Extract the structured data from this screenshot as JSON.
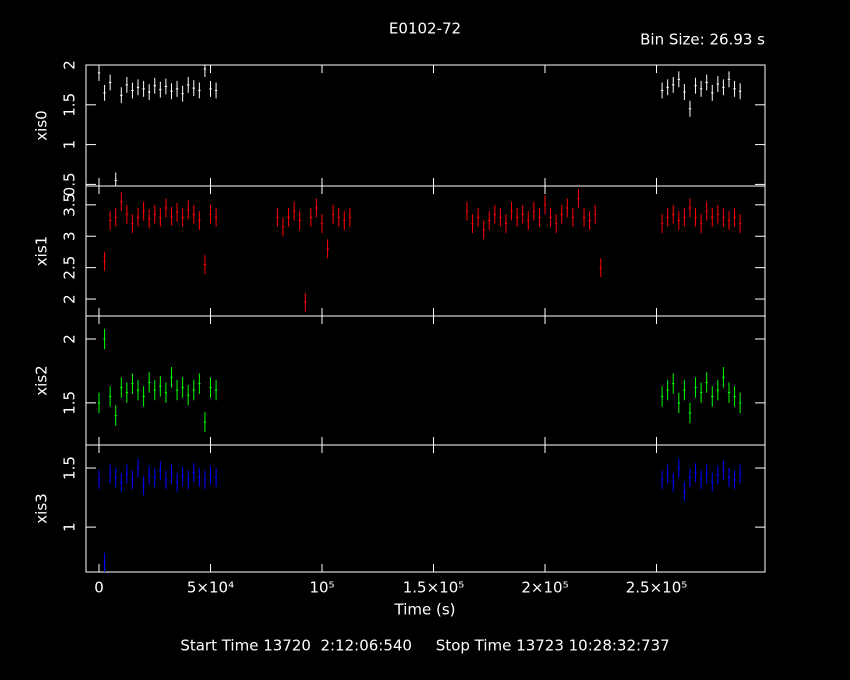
{
  "chart_data": [
    {
      "type": "errorbar",
      "title": "E0102-72",
      "subtitle": "Bin Size: 26.93 s",
      "footnote": "Start Time 13720  2:12:06:540     Stop Time 13723 10:28:32:737",
      "y_label": "xis0",
      "ylim": [
        0.48,
        2.0
      ],
      "yticks": [
        0.5,
        1,
        1.5,
        2
      ],
      "series": [
        {
          "color": "#ffffff",
          "error": 0.1,
          "x": [
            0,
            2500,
            5000,
            7500,
            10000,
            12500,
            15000,
            17500,
            20000,
            22500,
            25000,
            27500,
            30000,
            32500,
            35000,
            37500,
            40000,
            42500,
            45000,
            47500,
            50000,
            52500,
            252500,
            255000,
            257500,
            260000,
            262500,
            265000,
            267500,
            270000,
            272500,
            275000,
            277500,
            280000,
            282500,
            285000,
            287500
          ],
          "values": [
            1.9,
            1.65,
            1.78,
            0.55,
            1.62,
            1.75,
            1.68,
            1.72,
            1.7,
            1.66,
            1.74,
            1.69,
            1.73,
            1.67,
            1.7,
            1.64,
            1.75,
            1.71,
            1.68,
            1.95,
            1.7,
            1.68,
            1.68,
            1.72,
            1.75,
            1.82,
            1.66,
            1.45,
            1.74,
            1.7,
            1.78,
            1.65,
            1.76,
            1.72,
            1.82,
            1.7,
            1.67
          ]
        }
      ]
    },
    {
      "type": "errorbar",
      "y_label": "xis1",
      "ylim": [
        1.73,
        3.8
      ],
      "yticks": [
        2,
        2.5,
        3,
        3.5
      ],
      "series": [
        {
          "color": "#ff0000",
          "error": 0.15,
          "x": [
            2500,
            5000,
            7500,
            10000,
            12500,
            15000,
            17500,
            20000,
            22500,
            25000,
            27500,
            30000,
            32500,
            35000,
            37500,
            40000,
            42500,
            45000,
            47500,
            50000,
            52500,
            80000,
            82500,
            85000,
            87500,
            90000,
            92500,
            95000,
            97500,
            100000,
            102500,
            105000,
            107500,
            110000,
            112500,
            165000,
            167500,
            170000,
            172500,
            175000,
            177500,
            180000,
            182500,
            185000,
            187500,
            190000,
            192500,
            195000,
            197500,
            200000,
            202500,
            205000,
            207500,
            210000,
            212500,
            215000,
            217500,
            220000,
            222500,
            225000,
            252500,
            255000,
            257500,
            260000,
            262500,
            265000,
            267500,
            270000,
            272500,
            275000,
            277500,
            280000,
            282500,
            285000,
            287500
          ],
          "values": [
            2.6,
            3.25,
            3.3,
            3.55,
            3.35,
            3.2,
            3.3,
            3.4,
            3.28,
            3.35,
            3.3,
            3.45,
            3.32,
            3.38,
            3.3,
            3.42,
            3.35,
            3.25,
            2.55,
            3.35,
            3.3,
            3.3,
            3.15,
            3.3,
            3.4,
            3.25,
            1.95,
            3.3,
            3.45,
            3.2,
            2.8,
            3.35,
            3.3,
            3.25,
            3.3,
            3.4,
            3.2,
            3.3,
            3.1,
            3.25,
            3.35,
            3.3,
            3.2,
            3.4,
            3.3,
            3.35,
            3.25,
            3.4,
            3.3,
            3.5,
            3.3,
            3.2,
            3.35,
            3.45,
            3.3,
            3.6,
            3.3,
            3.25,
            3.35,
            2.5,
            3.2,
            3.3,
            3.35,
            3.25,
            3.3,
            3.45,
            3.3,
            3.2,
            3.4,
            3.3,
            3.35,
            3.3,
            3.25,
            3.3,
            3.2
          ]
        }
      ]
    },
    {
      "type": "errorbar",
      "y_label": "xis2",
      "ylim": [
        1.17,
        2.18
      ],
      "yticks": [
        1.5,
        2
      ],
      "series": [
        {
          "color": "#00ff00",
          "error": 0.08,
          "x": [
            0,
            2500,
            5000,
            7500,
            10000,
            12500,
            15000,
            17500,
            20000,
            22500,
            25000,
            27500,
            30000,
            32500,
            35000,
            37500,
            40000,
            42500,
            45000,
            47500,
            50000,
            52500,
            252500,
            255000,
            257500,
            260000,
            262500,
            265000,
            267500,
            270000,
            272500,
            275000,
            277500,
            280000,
            282500,
            285000,
            287500
          ],
          "values": [
            1.5,
            2.0,
            1.55,
            1.4,
            1.62,
            1.58,
            1.65,
            1.6,
            1.55,
            1.66,
            1.6,
            1.63,
            1.58,
            1.7,
            1.6,
            1.62,
            1.56,
            1.6,
            1.65,
            1.35,
            1.62,
            1.6,
            1.55,
            1.6,
            1.65,
            1.5,
            1.6,
            1.42,
            1.62,
            1.58,
            1.66,
            1.55,
            1.6,
            1.7,
            1.58,
            1.55,
            1.5
          ]
        }
      ]
    },
    {
      "type": "errorbar",
      "y_label": "xis3",
      "ylim": [
        0.62,
        1.695
      ],
      "yticks": [
        1,
        1.5
      ],
      "x_label": "Time (s)",
      "xlim": [
        -5830,
        298650
      ],
      "xticks": [
        0,
        {
          "value": 50000,
          "label": "5×10⁴"
        },
        {
          "value": 100000,
          "label": "10⁵"
        },
        {
          "value": 150000,
          "label": "1.5×10⁵"
        },
        {
          "value": 200000,
          "label": "2×10⁵"
        },
        {
          "value": 250000,
          "label": "2.5×10⁵"
        }
      ],
      "series": [
        {
          "color": "#0000ff",
          "error": 0.08,
          "x": [
            0,
            2500,
            5000,
            7500,
            10000,
            12500,
            15000,
            17500,
            20000,
            22500,
            25000,
            27500,
            30000,
            32500,
            35000,
            37500,
            40000,
            42500,
            45000,
            47500,
            50000,
            52500,
            252500,
            255000,
            257500,
            260000,
            262500,
            265000,
            267500,
            270000,
            272500,
            275000,
            277500,
            280000,
            282500,
            285000,
            287500
          ],
          "values": [
            1.4,
            0.7,
            1.45,
            1.42,
            1.38,
            1.45,
            1.4,
            1.5,
            1.35,
            1.44,
            1.42,
            1.48,
            1.4,
            1.45,
            1.38,
            1.43,
            1.4,
            1.46,
            1.42,
            1.4,
            1.44,
            1.42,
            1.4,
            1.45,
            1.38,
            1.5,
            1.3,
            1.42,
            1.46,
            1.4,
            1.45,
            1.38,
            1.44,
            1.48,
            1.42,
            1.4,
            1.45
          ]
        }
      ]
    }
  ]
}
